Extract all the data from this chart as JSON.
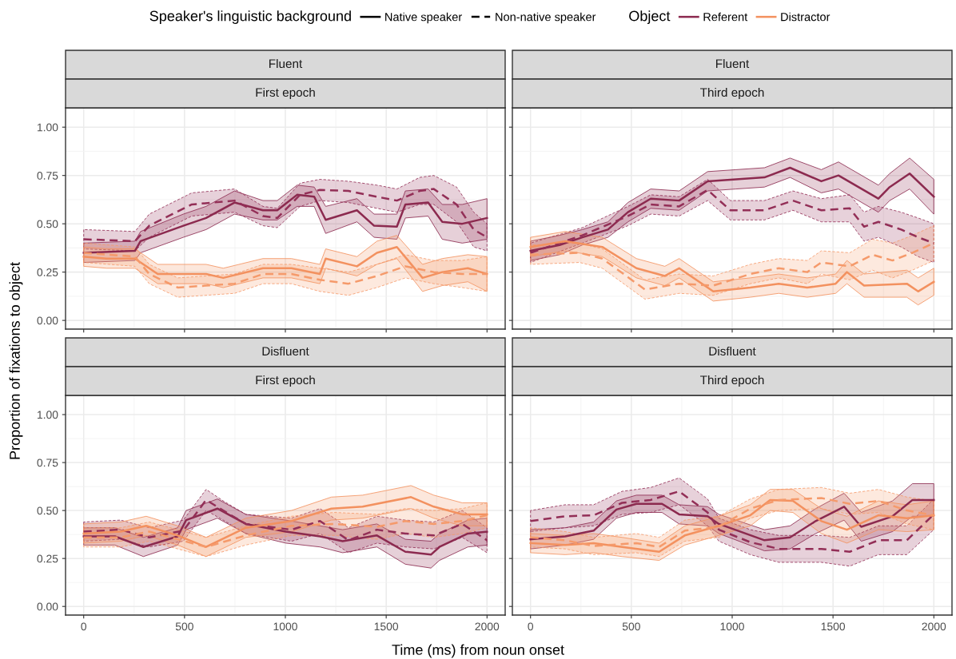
{
  "chart_data": [
    {
      "type": "line",
      "title": "Fluent",
      "subtitle": "First epoch",
      "ylabel": "Proportion of fixations to object",
      "legend": "top",
      "legend_title": "Speaker's linguistic background",
      "annotations": [
        "Native speaker",
        "Non-native speaker"
      ],
      "grid": true,
      "tick_labels": "y",
      "xlim": [
        -90,
        2090
      ],
      "ylim": [
        -0.045,
        1.1
      ],
      "xticks": [
        0,
        500,
        1000,
        1500,
        2000
      ],
      "yticks": [
        {
          "value": 0,
          "label": "0.00"
        },
        {
          "value": 0.25,
          "label": "0.25"
        },
        {
          "value": 0.5,
          "label": "0.50"
        },
        {
          "value": 0.75,
          "label": "0.75"
        },
        {
          "value": 1,
          "label": "1.00"
        }
      ],
      "series": [
        {
          "name": "Referent",
          "color": "#8c2a4f",
          "line_style": "solid",
          "x": [
            0,
            254,
            282,
            494,
            607,
            748,
            889,
            960,
            1058,
            1143,
            1200,
            1355,
            1440,
            1553,
            1595,
            1708,
            1778,
            1877,
            2000
          ],
          "values": [
            0.35,
            0.36,
            0.41,
            0.49,
            0.53,
            0.61,
            0.57,
            0.57,
            0.65,
            0.64,
            0.52,
            0.57,
            0.49,
            0.485,
            0.6,
            0.61,
            0.51,
            0.5,
            0.53
          ],
          "lower": [
            0.3,
            0.31,
            0.35,
            0.43,
            0.47,
            0.55,
            0.52,
            0.52,
            0.59,
            0.59,
            0.45,
            0.51,
            0.43,
            0.42,
            0.53,
            0.54,
            0.42,
            0.4,
            0.42
          ],
          "upper": [
            0.4,
            0.41,
            0.46,
            0.55,
            0.59,
            0.67,
            0.62,
            0.62,
            0.7,
            0.69,
            0.59,
            0.63,
            0.55,
            0.55,
            0.67,
            0.68,
            0.6,
            0.6,
            0.63
          ]
        },
        {
          "color": "#932f57",
          "line_style": "dashed",
          "x": [
            0,
            254,
            325,
            536,
            748,
            889,
            960,
            1073,
            1171,
            1313,
            1454,
            1553,
            1666,
            1736,
            1849,
            1934,
            2000
          ],
          "values": [
            0.42,
            0.41,
            0.49,
            0.6,
            0.62,
            0.54,
            0.53,
            0.65,
            0.675,
            0.67,
            0.64,
            0.62,
            0.67,
            0.68,
            0.6,
            0.47,
            0.43
          ],
          "lower": [
            0.37,
            0.36,
            0.43,
            0.54,
            0.56,
            0.49,
            0.48,
            0.59,
            0.62,
            0.61,
            0.58,
            0.56,
            0.6,
            0.6,
            0.51,
            0.38,
            0.36
          ],
          "upper": [
            0.47,
            0.46,
            0.55,
            0.66,
            0.68,
            0.59,
            0.58,
            0.71,
            0.73,
            0.72,
            0.7,
            0.68,
            0.74,
            0.75,
            0.69,
            0.56,
            0.5
          ]
        },
        {
          "name": "Distractor",
          "color": "#f3915f",
          "line_style": "solid",
          "x": [
            0,
            113,
            254,
            367,
            607,
            692,
            889,
            1030,
            1171,
            1200,
            1355,
            1454,
            1553,
            1680,
            1778,
            1905,
            2000
          ],
          "values": [
            0.33,
            0.32,
            0.32,
            0.24,
            0.24,
            0.22,
            0.27,
            0.27,
            0.24,
            0.32,
            0.28,
            0.35,
            0.38,
            0.22,
            0.25,
            0.27,
            0.24
          ],
          "lower": [
            0.28,
            0.27,
            0.27,
            0.19,
            0.19,
            0.17,
            0.22,
            0.22,
            0.19,
            0.27,
            0.23,
            0.29,
            0.32,
            0.15,
            0.18,
            0.2,
            0.15
          ],
          "upper": [
            0.38,
            0.37,
            0.37,
            0.29,
            0.29,
            0.27,
            0.32,
            0.32,
            0.29,
            0.37,
            0.33,
            0.41,
            0.44,
            0.29,
            0.32,
            0.34,
            0.33
          ]
        },
        {
          "color": "#f59a6b",
          "line_style": "dashed",
          "x": [
            0,
            254,
            325,
            466,
            607,
            748,
            889,
            1030,
            1171,
            1313,
            1454,
            1595,
            1736,
            1877,
            2000
          ],
          "values": [
            0.35,
            0.33,
            0.24,
            0.17,
            0.18,
            0.19,
            0.24,
            0.24,
            0.21,
            0.19,
            0.23,
            0.28,
            0.25,
            0.24,
            0.24
          ],
          "lower": [
            0.3,
            0.28,
            0.19,
            0.12,
            0.13,
            0.14,
            0.19,
            0.19,
            0.15,
            0.13,
            0.17,
            0.22,
            0.19,
            0.17,
            0.15
          ],
          "upper": [
            0.4,
            0.38,
            0.29,
            0.22,
            0.23,
            0.24,
            0.29,
            0.29,
            0.27,
            0.25,
            0.29,
            0.34,
            0.31,
            0.31,
            0.33
          ]
        }
      ]
    },
    {
      "type": "line",
      "title": "Fluent",
      "subtitle": "Third epoch",
      "legend_title": "Object",
      "grid": true,
      "tick_labels": false,
      "xlim": [
        -90,
        2090
      ],
      "ylim": [
        -0.045,
        1.1
      ],
      "xticks": [
        0,
        500,
        1000,
        1500,
        2000
      ],
      "yticks": [
        0,
        0.25,
        0.5,
        0.75,
        1
      ],
      "series": [
        {
          "color": "#8c2a4f",
          "line_style": "solid",
          "x": [
            0,
            144,
            257,
            384,
            483,
            596,
            737,
            878,
            1019,
            1160,
            1287,
            1442,
            1527,
            1626,
            1725,
            1781,
            1880,
            2000
          ],
          "values": [
            0.36,
            0.39,
            0.43,
            0.47,
            0.56,
            0.63,
            0.62,
            0.72,
            0.73,
            0.74,
            0.79,
            0.72,
            0.75,
            0.69,
            0.63,
            0.69,
            0.76,
            0.64
          ],
          "lower": [
            0.31,
            0.34,
            0.39,
            0.43,
            0.51,
            0.58,
            0.57,
            0.67,
            0.68,
            0.69,
            0.74,
            0.66,
            0.68,
            0.62,
            0.56,
            0.62,
            0.68,
            0.55
          ],
          "upper": [
            0.41,
            0.44,
            0.47,
            0.51,
            0.61,
            0.68,
            0.67,
            0.77,
            0.78,
            0.79,
            0.84,
            0.78,
            0.82,
            0.76,
            0.7,
            0.76,
            0.84,
            0.73
          ]
        },
        {
          "color": "#932f57",
          "line_style": "dashed",
          "x": [
            0,
            257,
            483,
            596,
            737,
            878,
            991,
            1160,
            1301,
            1442,
            1583,
            1654,
            1725,
            1838,
            1922,
            2000
          ],
          "values": [
            0.35,
            0.44,
            0.54,
            0.6,
            0.59,
            0.675,
            0.57,
            0.57,
            0.62,
            0.57,
            0.58,
            0.485,
            0.51,
            0.47,
            0.43,
            0.4
          ],
          "lower": [
            0.3,
            0.4,
            0.49,
            0.55,
            0.54,
            0.62,
            0.52,
            0.52,
            0.57,
            0.51,
            0.51,
            0.41,
            0.43,
            0.38,
            0.33,
            0.3
          ],
          "upper": [
            0.4,
            0.48,
            0.59,
            0.65,
            0.64,
            0.73,
            0.62,
            0.62,
            0.67,
            0.63,
            0.65,
            0.56,
            0.59,
            0.56,
            0.53,
            0.5
          ]
        },
        {
          "color": "#f3915f",
          "line_style": "solid",
          "x": [
            0,
            172,
            356,
            525,
            666,
            737,
            906,
            1090,
            1231,
            1372,
            1513,
            1569,
            1654,
            1866,
            1922,
            2000
          ],
          "values": [
            0.38,
            0.41,
            0.38,
            0.27,
            0.23,
            0.27,
            0.15,
            0.17,
            0.19,
            0.17,
            0.19,
            0.25,
            0.18,
            0.19,
            0.15,
            0.2
          ],
          "lower": [
            0.33,
            0.36,
            0.33,
            0.22,
            0.18,
            0.22,
            0.1,
            0.12,
            0.14,
            0.12,
            0.14,
            0.19,
            0.12,
            0.12,
            0.08,
            0.13
          ],
          "upper": [
            0.43,
            0.46,
            0.43,
            0.32,
            0.28,
            0.32,
            0.2,
            0.22,
            0.24,
            0.22,
            0.24,
            0.31,
            0.24,
            0.26,
            0.22,
            0.27
          ]
        },
        {
          "color": "#f59a6b",
          "line_style": "dashed",
          "x": [
            0,
            243,
            356,
            567,
            737,
            906,
            1090,
            1231,
            1372,
            1442,
            1583,
            1696,
            1795,
            1894,
            2000
          ],
          "values": [
            0.34,
            0.35,
            0.32,
            0.16,
            0.19,
            0.18,
            0.24,
            0.27,
            0.25,
            0.3,
            0.28,
            0.34,
            0.31,
            0.35,
            0.4
          ],
          "lower": [
            0.29,
            0.3,
            0.27,
            0.11,
            0.14,
            0.13,
            0.19,
            0.22,
            0.19,
            0.24,
            0.21,
            0.26,
            0.22,
            0.26,
            0.31
          ],
          "upper": [
            0.39,
            0.4,
            0.37,
            0.21,
            0.24,
            0.23,
            0.29,
            0.32,
            0.31,
            0.36,
            0.35,
            0.42,
            0.4,
            0.44,
            0.49
          ]
        }
      ]
    },
    {
      "type": "line",
      "title": "Disfluent",
      "subtitle": "First epoch",
      "xlabel": "Time (ms) from noun onset",
      "grid": true,
      "xlim": [
        -90,
        2090
      ],
      "ylim": [
        -0.045,
        1.1
      ],
      "xticks": [
        0,
        500,
        1000,
        1500,
        2000
      ],
      "yticks": [
        {
          "value": 0,
          "label": "0.00"
        },
        {
          "value": 0.25,
          "label": "0.25"
        },
        {
          "value": 0.5,
          "label": "0.50"
        },
        {
          "value": 0.75,
          "label": "0.75"
        },
        {
          "value": 1,
          "label": "1.00"
        }
      ],
      "series": [
        {
          "color": "#8c2a4f",
          "line_style": "solid",
          "x": [
            0,
            155,
            296,
            466,
            508,
            663,
            804,
            1002,
            1172,
            1284,
            1454,
            1595,
            1722,
            1764,
            1905,
            2000
          ],
          "values": [
            0.365,
            0.365,
            0.31,
            0.365,
            0.45,
            0.51,
            0.43,
            0.39,
            0.365,
            0.34,
            0.37,
            0.285,
            0.27,
            0.31,
            0.38,
            0.39
          ],
          "lower": [
            0.32,
            0.32,
            0.26,
            0.32,
            0.4,
            0.46,
            0.38,
            0.33,
            0.31,
            0.28,
            0.31,
            0.22,
            0.2,
            0.24,
            0.31,
            0.32
          ],
          "upper": [
            0.41,
            0.41,
            0.36,
            0.41,
            0.5,
            0.56,
            0.48,
            0.45,
            0.42,
            0.4,
            0.43,
            0.35,
            0.34,
            0.38,
            0.45,
            0.46
          ]
        },
        {
          "color": "#932f57",
          "line_style": "dashed",
          "x": [
            0,
            183,
            325,
            494,
            607,
            692,
            804,
            1030,
            1172,
            1313,
            1454,
            1595,
            1736,
            1877,
            2000
          ],
          "values": [
            0.39,
            0.4,
            0.36,
            0.395,
            0.555,
            0.5,
            0.43,
            0.4,
            0.445,
            0.345,
            0.4,
            0.38,
            0.37,
            0.43,
            0.345
          ],
          "lower": [
            0.34,
            0.35,
            0.31,
            0.34,
            0.5,
            0.45,
            0.38,
            0.34,
            0.38,
            0.28,
            0.33,
            0.31,
            0.3,
            0.36,
            0.28
          ],
          "upper": [
            0.44,
            0.45,
            0.41,
            0.45,
            0.61,
            0.55,
            0.48,
            0.46,
            0.51,
            0.41,
            0.47,
            0.45,
            0.44,
            0.5,
            0.41
          ]
        },
        {
          "color": "#f3915f",
          "line_style": "solid",
          "x": [
            0,
            183,
            310,
            466,
            607,
            804,
            1030,
            1228,
            1383,
            1623,
            1736,
            1877,
            2000
          ],
          "values": [
            0.38,
            0.39,
            0.42,
            0.37,
            0.31,
            0.41,
            0.445,
            0.51,
            0.52,
            0.57,
            0.52,
            0.48,
            0.48
          ],
          "lower": [
            0.33,
            0.34,
            0.37,
            0.32,
            0.26,
            0.36,
            0.39,
            0.45,
            0.46,
            0.51,
            0.46,
            0.42,
            0.42
          ],
          "upper": [
            0.43,
            0.44,
            0.47,
            0.42,
            0.36,
            0.46,
            0.5,
            0.57,
            0.58,
            0.63,
            0.58,
            0.54,
            0.54
          ]
        },
        {
          "color": "#f59a6b",
          "line_style": "dashed",
          "x": [
            0,
            183,
            325,
            466,
            607,
            804,
            1030,
            1242,
            1454,
            1595,
            1736,
            1877,
            2000
          ],
          "values": [
            0.36,
            0.36,
            0.39,
            0.35,
            0.31,
            0.37,
            0.42,
            0.43,
            0.415,
            0.445,
            0.43,
            0.445,
            0.475
          ],
          "lower": [
            0.31,
            0.31,
            0.34,
            0.3,
            0.26,
            0.32,
            0.37,
            0.37,
            0.35,
            0.38,
            0.36,
            0.38,
            0.41
          ],
          "upper": [
            0.41,
            0.41,
            0.44,
            0.4,
            0.36,
            0.42,
            0.47,
            0.49,
            0.48,
            0.51,
            0.5,
            0.51,
            0.54
          ]
        }
      ]
    },
    {
      "type": "line",
      "title": "Disfluent",
      "subtitle": "Third epoch",
      "grid": true,
      "tick_labels": "x",
      "xlim": [
        -90,
        2090
      ],
      "ylim": [
        -0.045,
        1.1
      ],
      "xticks": [
        0,
        500,
        1000,
        1500,
        2000
      ],
      "yticks": [
        0,
        0.25,
        0.5,
        0.75,
        1
      ],
      "series": [
        {
          "color": "#8c2a4f",
          "line_style": "solid",
          "x": [
            0,
            172,
            313,
            426,
            525,
            652,
            737,
            878,
            934,
            1160,
            1287,
            1414,
            1555,
            1640,
            1795,
            1894,
            2000
          ],
          "values": [
            0.35,
            0.365,
            0.395,
            0.505,
            0.535,
            0.535,
            0.48,
            0.47,
            0.43,
            0.345,
            0.36,
            0.445,
            0.52,
            0.415,
            0.47,
            0.555,
            0.555
          ],
          "lower": [
            0.3,
            0.32,
            0.35,
            0.46,
            0.49,
            0.49,
            0.43,
            0.42,
            0.38,
            0.29,
            0.3,
            0.38,
            0.45,
            0.34,
            0.39,
            0.47,
            0.47
          ],
          "upper": [
            0.4,
            0.41,
            0.44,
            0.55,
            0.58,
            0.58,
            0.53,
            0.52,
            0.48,
            0.4,
            0.42,
            0.51,
            0.59,
            0.49,
            0.55,
            0.64,
            0.64
          ]
        },
        {
          "color": "#932f57",
          "line_style": "dashed",
          "x": [
            0,
            172,
            313,
            454,
            596,
            737,
            878,
            934,
            1090,
            1231,
            1442,
            1583,
            1725,
            1866,
            2000
          ],
          "values": [
            0.445,
            0.47,
            0.475,
            0.54,
            0.555,
            0.6,
            0.49,
            0.4,
            0.335,
            0.3,
            0.3,
            0.285,
            0.345,
            0.345,
            0.48
          ],
          "lower": [
            0.39,
            0.41,
            0.42,
            0.48,
            0.49,
            0.53,
            0.42,
            0.34,
            0.27,
            0.23,
            0.23,
            0.21,
            0.27,
            0.27,
            0.4
          ],
          "upper": [
            0.5,
            0.53,
            0.53,
            0.6,
            0.62,
            0.67,
            0.56,
            0.46,
            0.4,
            0.37,
            0.37,
            0.36,
            0.42,
            0.42,
            0.56
          ]
        },
        {
          "color": "#f3915f",
          "line_style": "solid",
          "x": [
            0,
            172,
            313,
            454,
            638,
            765,
            934,
            1090,
            1188,
            1301,
            1442,
            1569,
            1725,
            1866,
            2000
          ],
          "values": [
            0.33,
            0.32,
            0.33,
            0.31,
            0.285,
            0.37,
            0.42,
            0.475,
            0.555,
            0.55,
            0.445,
            0.4,
            0.475,
            0.46,
            0.475
          ],
          "lower": [
            0.28,
            0.27,
            0.28,
            0.26,
            0.24,
            0.32,
            0.37,
            0.42,
            0.5,
            0.49,
            0.38,
            0.33,
            0.4,
            0.39,
            0.4
          ],
          "upper": [
            0.38,
            0.37,
            0.38,
            0.36,
            0.33,
            0.42,
            0.47,
            0.53,
            0.61,
            0.61,
            0.51,
            0.47,
            0.55,
            0.53,
            0.55
          ]
        },
        {
          "color": "#f59a6b",
          "line_style": "dashed",
          "x": [
            0,
            172,
            313,
            525,
            638,
            765,
            934,
            1090,
            1231,
            1442,
            1583,
            1725,
            1866,
            2000
          ],
          "values": [
            0.36,
            0.345,
            0.315,
            0.33,
            0.31,
            0.395,
            0.415,
            0.51,
            0.555,
            0.565,
            0.535,
            0.55,
            0.5,
            0.475
          ],
          "lower": [
            0.31,
            0.3,
            0.27,
            0.28,
            0.26,
            0.34,
            0.36,
            0.46,
            0.5,
            0.51,
            0.48,
            0.49,
            0.43,
            0.4
          ],
          "upper": [
            0.41,
            0.39,
            0.36,
            0.38,
            0.36,
            0.45,
            0.47,
            0.56,
            0.61,
            0.62,
            0.59,
            0.61,
            0.57,
            0.55
          ]
        }
      ]
    }
  ]
}
